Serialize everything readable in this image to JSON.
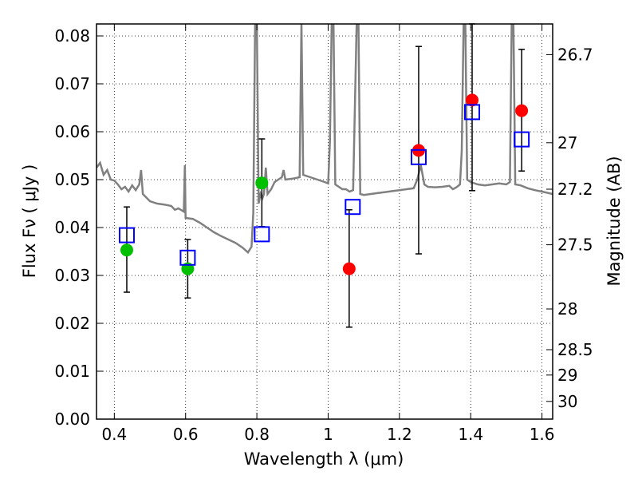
{
  "chart_data": {
    "type": "scatter",
    "title": "",
    "xlabel": "Wavelength  λ (μm)",
    "ylabel": "Flux  Fν  ( μJy )",
    "ylabel_right": "Magnitude (AB)",
    "xlim": [
      0.35,
      1.63
    ],
    "ylim": [
      0.0,
      0.0825
    ],
    "x_ticks": [
      0.4,
      0.6,
      0.8,
      1.0,
      1.2,
      1.4,
      1.6
    ],
    "x_tick_labels": [
      "0.4",
      "0.6",
      "0.8",
      "1",
      "1.2",
      "1.4",
      "1.6"
    ],
    "y_ticks": [
      0.0,
      0.01,
      0.02,
      0.03,
      0.04,
      0.05,
      0.06,
      0.07,
      0.08
    ],
    "y_tick_labels": [
      "0.00",
      "0.01",
      "0.02",
      "0.03",
      "0.04",
      "0.05",
      "0.06",
      "0.07",
      "0.08"
    ],
    "right_ticks": [
      {
        "label": "26.7",
        "flux": 0.0761
      },
      {
        "label": "27",
        "flux": 0.0577
      },
      {
        "label": "27.2",
        "flux": 0.048
      },
      {
        "label": "27.5",
        "flux": 0.0364
      },
      {
        "label": "28",
        "flux": 0.023
      },
      {
        "label": "28.5",
        "flux": 0.0145
      },
      {
        "label": "29",
        "flux": 0.0092
      },
      {
        "label": "30",
        "flux": 0.0037
      }
    ],
    "grid": true,
    "colors": {
      "model": "#808080",
      "green": "#00c000",
      "red": "#ff0000",
      "square": "#0000ff",
      "errorbar": "#000000"
    },
    "series": [
      {
        "name": "observed_green",
        "marker": "circle",
        "color": "#00c000",
        "points": [
          {
            "x": 0.435,
            "y": 0.0353,
            "err_low": 0.0265,
            "err_high": 0.0443
          },
          {
            "x": 0.606,
            "y": 0.0314,
            "err_low": 0.0253,
            "err_high": 0.0375
          },
          {
            "x": 0.814,
            "y": 0.0493,
            "err_low": 0.0402,
            "err_high": 0.0585
          }
        ]
      },
      {
        "name": "observed_red",
        "marker": "circle",
        "color": "#ff0000",
        "points": [
          {
            "x": 1.059,
            "y": 0.0314,
            "err_low": 0.0192,
            "err_high": 0.0437
          },
          {
            "x": 1.254,
            "y": 0.0561,
            "err_low": 0.0345,
            "err_high": 0.0778
          },
          {
            "x": 1.404,
            "y": 0.0666,
            "err_low": 0.0477,
            "err_high": 0.0825
          },
          {
            "x": 1.543,
            "y": 0.0644,
            "err_low": 0.0518,
            "err_high": 0.0772
          }
        ]
      },
      {
        "name": "model_photometry",
        "marker": "square",
        "color": "#0000ff",
        "points": [
          {
            "x": 0.435,
            "y": 0.0384
          },
          {
            "x": 0.606,
            "y": 0.0337
          },
          {
            "x": 0.814,
            "y": 0.0386
          },
          {
            "x": 1.069,
            "y": 0.0443
          },
          {
            "x": 1.254,
            "y": 0.0547
          },
          {
            "x": 1.404,
            "y": 0.0641
          },
          {
            "x": 1.543,
            "y": 0.0584
          }
        ]
      },
      {
        "name": "model_spectrum",
        "type": "line",
        "color": "#808080",
        "points": [
          [
            0.35,
            0.0525
          ],
          [
            0.36,
            0.0535
          ],
          [
            0.37,
            0.051
          ],
          [
            0.38,
            0.052
          ],
          [
            0.39,
            0.05
          ],
          [
            0.4,
            0.0498
          ],
          [
            0.41,
            0.049
          ],
          [
            0.42,
            0.048
          ],
          [
            0.43,
            0.0485
          ],
          [
            0.44,
            0.0475
          ],
          [
            0.45,
            0.0488
          ],
          [
            0.46,
            0.0478
          ],
          [
            0.47,
            0.049
          ],
          [
            0.475,
            0.052
          ],
          [
            0.48,
            0.047
          ],
          [
            0.5,
            0.0455
          ],
          [
            0.52,
            0.045
          ],
          [
            0.54,
            0.0448
          ],
          [
            0.56,
            0.0445
          ],
          [
            0.57,
            0.0437
          ],
          [
            0.58,
            0.044
          ],
          [
            0.595,
            0.0433
          ],
          [
            0.598,
            0.053
          ],
          [
            0.6,
            0.042
          ],
          [
            0.62,
            0.0418
          ],
          [
            0.64,
            0.041
          ],
          [
            0.66,
            0.04
          ],
          [
            0.68,
            0.039
          ],
          [
            0.7,
            0.0382
          ],
          [
            0.72,
            0.0375
          ],
          [
            0.74,
            0.0368
          ],
          [
            0.76,
            0.0358
          ],
          [
            0.775,
            0.0348
          ],
          [
            0.785,
            0.036
          ],
          [
            0.79,
            0.043
          ],
          [
            0.795,
            0.0825
          ],
          [
            0.8,
            0.0825
          ],
          [
            0.805,
            0.045
          ],
          [
            0.81,
            0.047
          ],
          [
            0.815,
            0.046
          ],
          [
            0.82,
            0.047
          ],
          [
            0.825,
            0.0525
          ],
          [
            0.83,
            0.047
          ],
          [
            0.84,
            0.048
          ],
          [
            0.85,
            0.0495
          ],
          [
            0.86,
            0.05
          ],
          [
            0.87,
            0.0505
          ],
          [
            0.875,
            0.052
          ],
          [
            0.88,
            0.05
          ],
          [
            0.9,
            0.0502
          ],
          [
            0.92,
            0.0505
          ],
          [
            0.925,
            0.083
          ],
          [
            0.93,
            0.051
          ],
          [
            0.95,
            0.0505
          ],
          [
            0.97,
            0.05
          ],
          [
            0.99,
            0.0495
          ],
          [
            1.0,
            0.0492
          ],
          [
            1.005,
            0.058
          ],
          [
            1.01,
            0.0825
          ],
          [
            1.015,
            0.0825
          ],
          [
            1.02,
            0.049
          ],
          [
            1.04,
            0.048
          ],
          [
            1.05,
            0.048
          ],
          [
            1.06,
            0.0475
          ],
          [
            1.07,
            0.0478
          ],
          [
            1.08,
            0.0825
          ],
          [
            1.085,
            0.0825
          ],
          [
            1.09,
            0.047
          ],
          [
            1.1,
            0.0468
          ],
          [
            1.12,
            0.047
          ],
          [
            1.14,
            0.0472
          ],
          [
            1.16,
            0.0474
          ],
          [
            1.18,
            0.0476
          ],
          [
            1.2,
            0.0478
          ],
          [
            1.22,
            0.048
          ],
          [
            1.24,
            0.0482
          ],
          [
            1.25,
            0.05
          ],
          [
            1.26,
            0.053
          ],
          [
            1.27,
            0.049
          ],
          [
            1.28,
            0.0485
          ],
          [
            1.3,
            0.0484
          ],
          [
            1.32,
            0.0485
          ],
          [
            1.34,
            0.0487
          ],
          [
            1.35,
            0.048
          ],
          [
            1.36,
            0.0484
          ],
          [
            1.37,
            0.049
          ],
          [
            1.375,
            0.056
          ],
          [
            1.38,
            0.0825
          ],
          [
            1.385,
            0.0825
          ],
          [
            1.39,
            0.05
          ],
          [
            1.4,
            0.0495
          ],
          [
            1.42,
            0.049
          ],
          [
            1.44,
            0.0488
          ],
          [
            1.46,
            0.049
          ],
          [
            1.48,
            0.0492
          ],
          [
            1.5,
            0.049
          ],
          [
            1.51,
            0.0495
          ],
          [
            1.515,
            0.0825
          ],
          [
            1.52,
            0.0825
          ],
          [
            1.525,
            0.049
          ],
          [
            1.54,
            0.0488
          ],
          [
            1.56,
            0.0482
          ],
          [
            1.58,
            0.0478
          ],
          [
            1.6,
            0.0475
          ],
          [
            1.63,
            0.047
          ]
        ]
      }
    ]
  }
}
